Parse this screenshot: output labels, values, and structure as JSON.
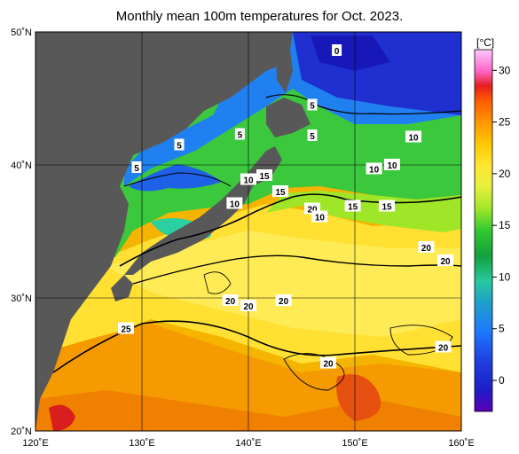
{
  "title": "Monthly mean 100m temperatures for Oct. 2023.",
  "unit_label": "[°C]",
  "lat_ticks": [
    {
      "label": "20˚N",
      "lat": 20
    },
    {
      "label": "30˚N",
      "lat": 30
    },
    {
      "label": "40˚N",
      "lat": 40
    },
    {
      "label": "50˚N",
      "lat": 50
    }
  ],
  "lon_ticks": [
    {
      "label": "120˚E",
      "lon": 120
    },
    {
      "label": "130˚E",
      "lon": 130
    },
    {
      "label": "140˚E",
      "lon": 140
    },
    {
      "label": "150˚E",
      "lon": 150
    },
    {
      "label": "160˚E",
      "lon": 160
    }
  ],
  "colorbar_ticks": [
    "0",
    "5",
    "10",
    "15",
    "20",
    "25",
    "30"
  ],
  "contour_labels": [
    {
      "text": "0",
      "lon": 148.3,
      "lat": 48.6
    },
    {
      "text": "5",
      "lon": 146.0,
      "lat": 44.5
    },
    {
      "text": "5",
      "lon": 146.0,
      "lat": 42.2
    },
    {
      "text": "5",
      "lon": 133.5,
      "lat": 41.5
    },
    {
      "text": "5",
      "lon": 139.2,
      "lat": 42.3
    },
    {
      "text": "5",
      "lon": 129.5,
      "lat": 39.8
    },
    {
      "text": "15",
      "lon": 141.5,
      "lat": 39.2
    },
    {
      "text": "15",
      "lon": 143.0,
      "lat": 38.0
    },
    {
      "text": "10",
      "lon": 140.0,
      "lat": 38.9
    },
    {
      "text": "10",
      "lon": 138.7,
      "lat": 37.1
    },
    {
      "text": "10",
      "lon": 151.8,
      "lat": 39.7
    },
    {
      "text": "10",
      "lon": 153.5,
      "lat": 40.0
    },
    {
      "text": "10",
      "lon": 155.5,
      "lat": 42.1
    },
    {
      "text": "20",
      "lon": 146.0,
      "lat": 36.7
    },
    {
      "text": "10",
      "lon": 146.7,
      "lat": 36.1
    },
    {
      "text": "15",
      "lon": 149.8,
      "lat": 36.9
    },
    {
      "text": "15",
      "lon": 153.0,
      "lat": 36.9
    },
    {
      "text": "20",
      "lon": 156.7,
      "lat": 33.8
    },
    {
      "text": "20",
      "lon": 158.5,
      "lat": 32.8
    },
    {
      "text": "20",
      "lon": 138.3,
      "lat": 29.8
    },
    {
      "text": "20",
      "lon": 140.0,
      "lat": 29.4
    },
    {
      "text": "20",
      "lon": 143.3,
      "lat": 29.8
    },
    {
      "text": "25",
      "lon": 128.5,
      "lat": 27.7
    },
    {
      "text": "20",
      "lon": 158.3,
      "lat": 26.3
    },
    {
      "text": "20",
      "lon": 147.5,
      "lat": 25.1
    }
  ],
  "colors": {
    "land": "#585858",
    "land_light": "#d9d9d9",
    "grid": "#000000"
  }
}
